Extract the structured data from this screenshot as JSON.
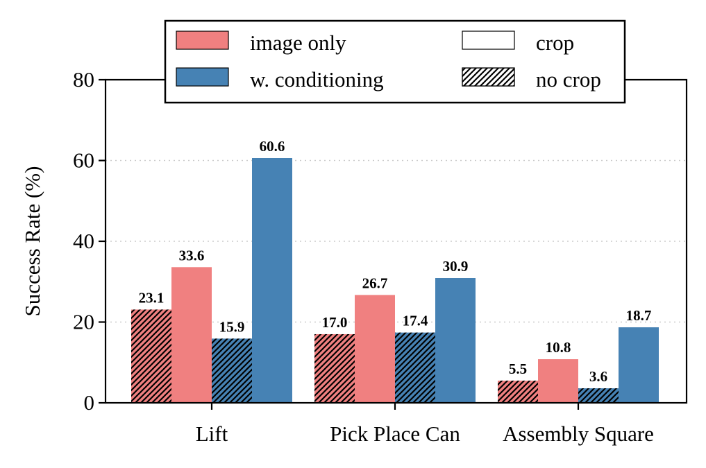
{
  "chart_data": {
    "type": "bar",
    "ylabel": "Success Rate (%)",
    "xlabel": "",
    "ylim": [
      0,
      80
    ],
    "yticks": [
      "0",
      "20",
      "40",
      "60",
      "80"
    ],
    "grid": "horizontal dotted",
    "categories": [
      "Lift",
      "Pick Place Can",
      "Assembly Square"
    ],
    "series": [
      {
        "name": "image only, no crop",
        "color": "#f08080",
        "hatched": true,
        "values": [
          23.1,
          17.0,
          5.5
        ],
        "labels": [
          "23.1",
          "17.0",
          "5.5"
        ]
      },
      {
        "name": "image only, crop",
        "color": "#f08080",
        "hatched": false,
        "values": [
          33.6,
          26.7,
          10.8
        ],
        "labels": [
          "33.6",
          "26.7",
          "10.8"
        ]
      },
      {
        "name": "w. conditioning, no crop",
        "color": "#4682b4",
        "hatched": true,
        "values": [
          15.9,
          17.4,
          3.6
        ],
        "labels": [
          "15.9",
          "17.4",
          "3.6"
        ]
      },
      {
        "name": "w. conditioning, crop",
        "color": "#4682b4",
        "hatched": false,
        "values": [
          60.6,
          30.9,
          18.7
        ],
        "labels": [
          "60.6",
          "30.9",
          "18.7"
        ]
      }
    ],
    "legend": {
      "position": "top-center",
      "entries": [
        {
          "label": "image only",
          "swatch": "color",
          "color": "#f08080"
        },
        {
          "label": "w. conditioning",
          "swatch": "color",
          "color": "#4682b4"
        },
        {
          "label": "crop",
          "swatch": "plain"
        },
        {
          "label": "no crop",
          "swatch": "hatch"
        }
      ]
    }
  }
}
